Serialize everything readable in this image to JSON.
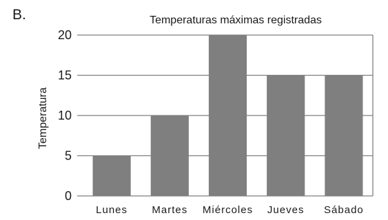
{
  "panel_label": "B.",
  "chart_data": {
    "type": "bar",
    "title": "Temperaturas máximas registradas",
    "xlabel": "",
    "ylabel": "Temperatura",
    "categories": [
      "Lunes",
      "Martes",
      "Miércoles",
      "Jueves",
      "Sábado"
    ],
    "values": [
      5,
      10,
      20,
      15,
      15
    ],
    "ylim": [
      0,
      20
    ],
    "yticks": [
      0,
      5,
      10,
      15,
      20
    ],
    "grid": "horizontal",
    "bar_color": "#7f7f7f",
    "grid_color": "#7f7f7f"
  }
}
